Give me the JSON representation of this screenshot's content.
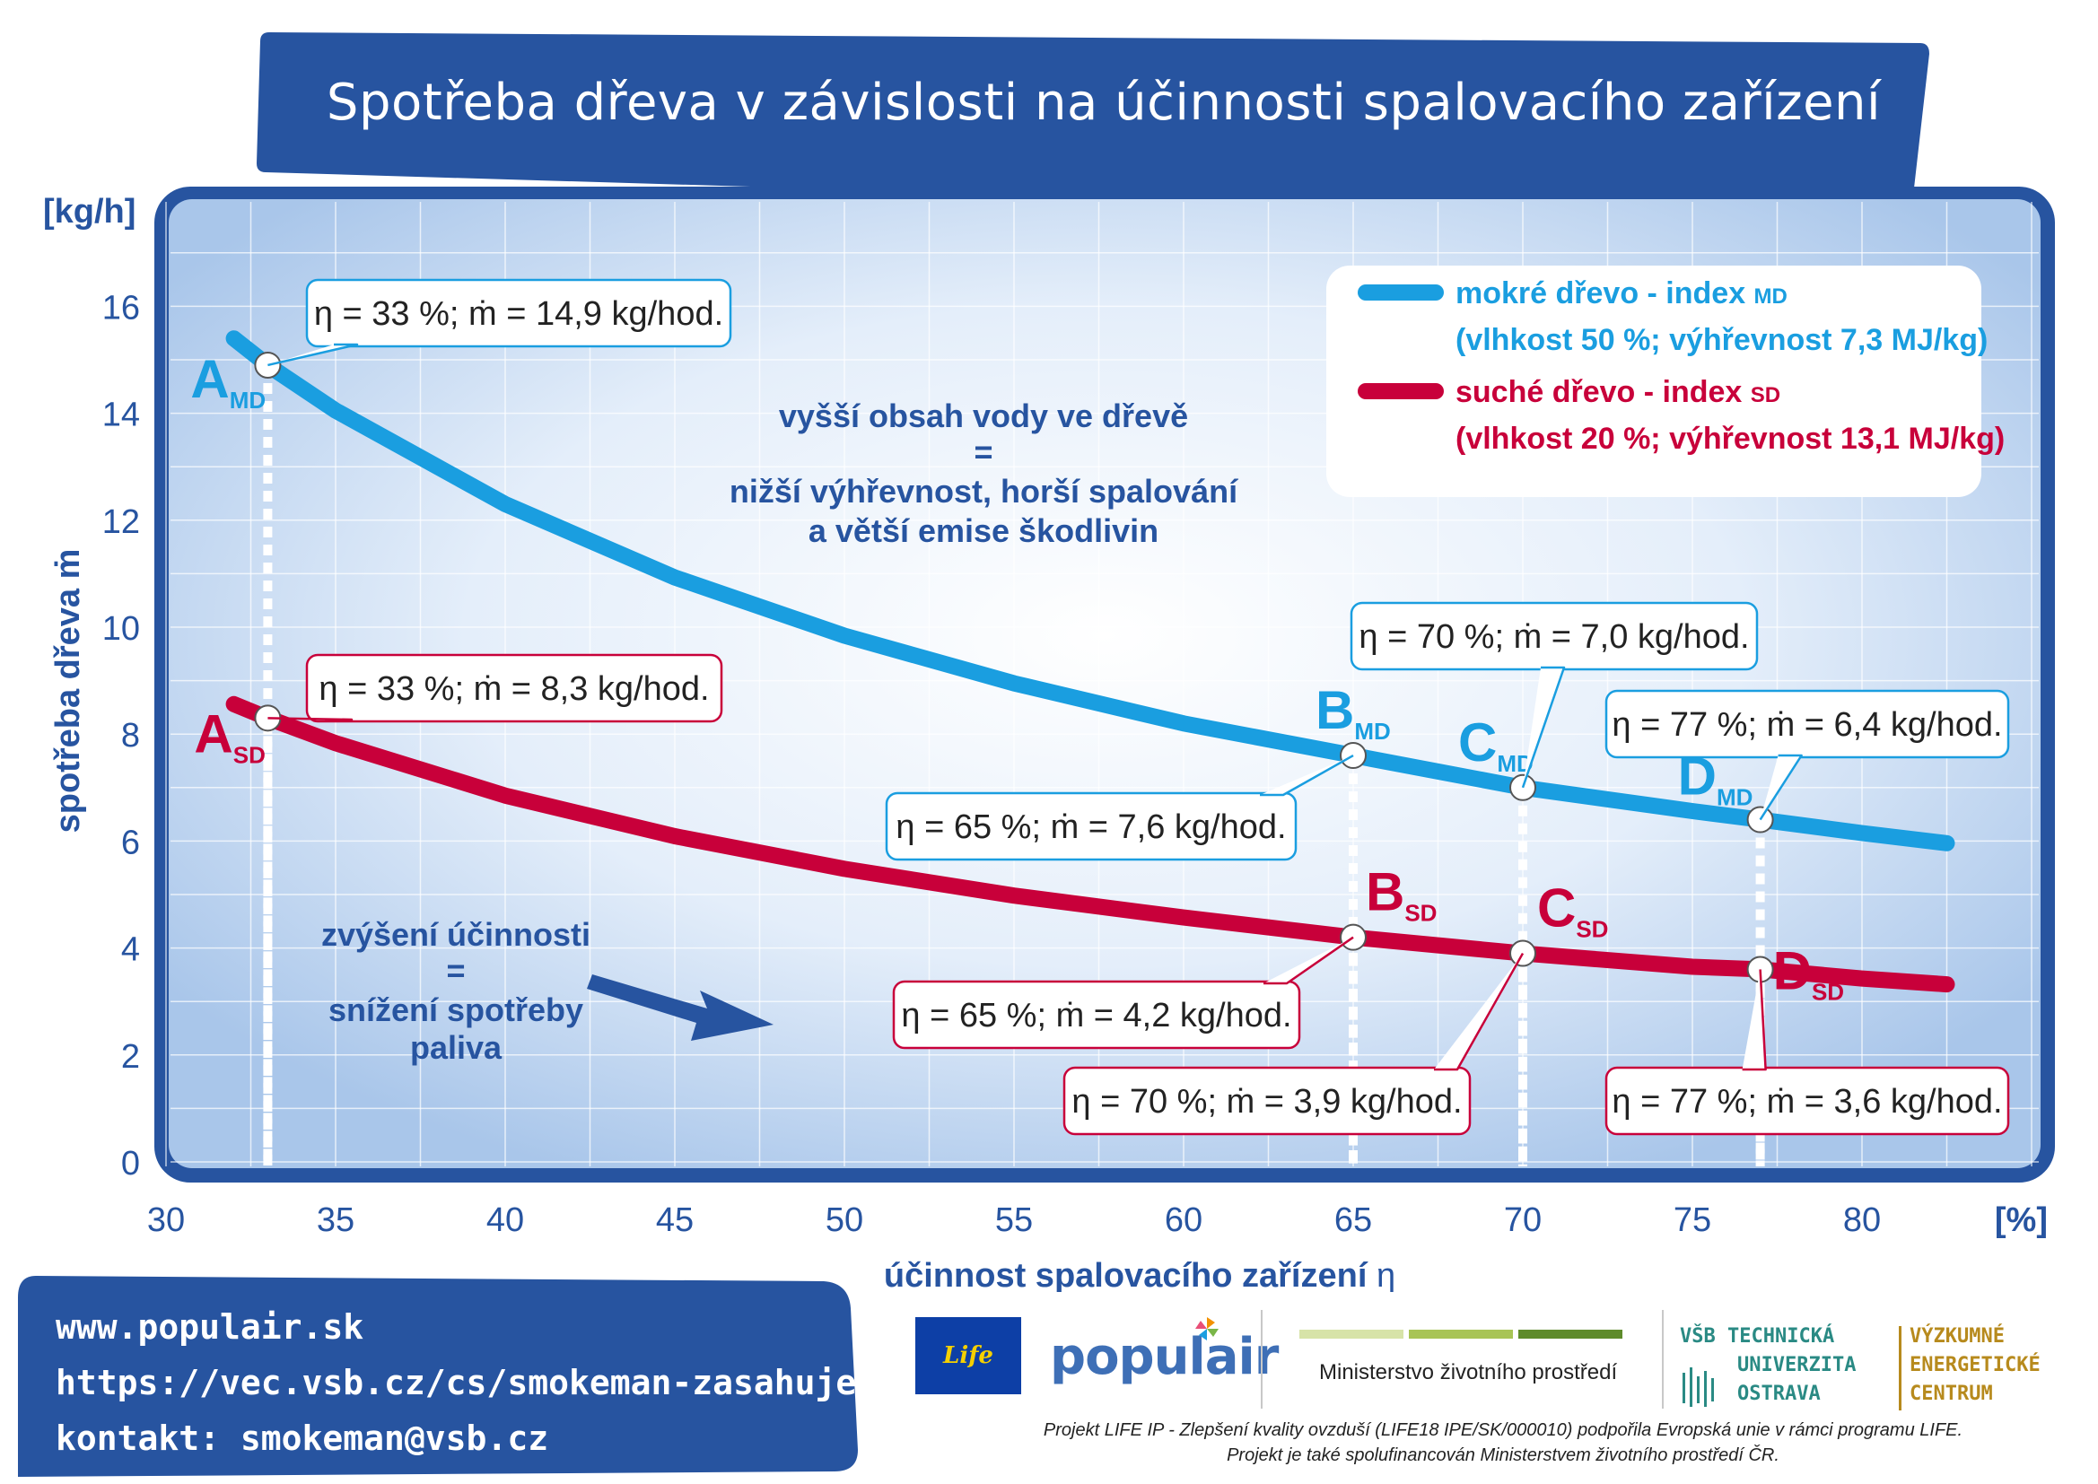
{
  "title": "Spotřeba dřeva v závislosti na účinnosti spalovacího zařízení",
  "colors": {
    "banner": "#2754a0",
    "frame": "#2754a0",
    "plot_inner": "#c7dcf2",
    "plot_glow": "#ffffff",
    "mokre": "#1a9ee0",
    "sucha": "#c8003a",
    "annotation": "#2754a0",
    "axis_text": "#2754a0"
  },
  "chart_data": {
    "type": "line",
    "xlabel": "účinnost spalovacího zařízení",
    "xlabel_symbol": "η",
    "ylabel": "spotřeba dřeva ṁ",
    "x_unit": "[%]",
    "y_unit": "[kg/h]",
    "xlim": [
      30,
      85
    ],
    "ylim": [
      0,
      17
    ],
    "xticks": [
      30,
      35,
      40,
      45,
      50,
      55,
      60,
      65,
      70,
      75,
      80
    ],
    "yticks": [
      0,
      2,
      4,
      6,
      8,
      10,
      12,
      14,
      16
    ],
    "grid": true,
    "legend_position": "top-right",
    "series": [
      {
        "name": "mokré dřevo - index",
        "index": "MD",
        "detail": "(vlhkost 50 %; výhřevnost 7,3 MJ/kg)",
        "color": "#1a9ee0",
        "x": [
          32,
          33,
          35,
          40,
          45,
          50,
          55,
          60,
          65,
          70,
          75,
          77,
          80,
          82.5
        ],
        "y": [
          15.4,
          14.9,
          14.05,
          12.3,
          10.93,
          9.84,
          8.95,
          8.2,
          7.6,
          7.0,
          6.56,
          6.4,
          6.15,
          5.96
        ]
      },
      {
        "name": "suché dřevo - index",
        "index": "SD",
        "detail": "(vlhkost 20 %; výhřevnost 13,1 MJ/kg)",
        "color": "#c8003a",
        "x": [
          32,
          33,
          35,
          40,
          45,
          50,
          55,
          60,
          65,
          70,
          75,
          77,
          80,
          82.5
        ],
        "y": [
          8.56,
          8.3,
          7.83,
          6.85,
          6.09,
          5.48,
          4.98,
          4.57,
          4.2,
          3.9,
          3.65,
          3.6,
          3.43,
          3.32
        ]
      }
    ],
    "points": [
      {
        "letter": "A",
        "index": "MD",
        "series": 0,
        "x": 33,
        "y": 14.9,
        "label": "η = 33 %; ṁ = 14,9 kg/hod."
      },
      {
        "letter": "B",
        "index": "MD",
        "series": 0,
        "x": 65,
        "y": 7.6,
        "label": "η = 65 %; ṁ = 7,6 kg/hod."
      },
      {
        "letter": "C",
        "index": "MD",
        "series": 0,
        "x": 70,
        "y": 7.0,
        "label": "η = 70 %; ṁ = 7,0 kg/hod."
      },
      {
        "letter": "D",
        "index": "MD",
        "series": 0,
        "x": 77,
        "y": 6.4,
        "label": "η = 77 %; ṁ = 6,4 kg/hod."
      },
      {
        "letter": "A",
        "index": "SD",
        "series": 1,
        "x": 33,
        "y": 8.3,
        "label": "η = 33 %; ṁ = 8,3 kg/hod."
      },
      {
        "letter": "B",
        "index": "SD",
        "series": 1,
        "x": 65,
        "y": 4.2,
        "label": "η = 65 %; ṁ = 4,2 kg/hod."
      },
      {
        "letter": "C",
        "index": "SD",
        "series": 1,
        "x": 70,
        "y": 3.9,
        "label": "η = 70 %; ṁ = 3,9 kg/hod."
      },
      {
        "letter": "D",
        "index": "SD",
        "series": 1,
        "x": 77,
        "y": 3.6,
        "label": "η = 77 %; ṁ = 3,6 kg/hod."
      }
    ],
    "annotations": [
      [
        "vyšší obsah vody ve dřevě",
        "=",
        "nižší výhřevnost, horší spalování",
        "a větší emise škodlivin"
      ],
      [
        "zvýšení účinnosti",
        "=",
        "snížení spotřeby",
        "paliva"
      ]
    ]
  },
  "footer": {
    "links": [
      "www.populair.sk",
      "https://vec.vsb.cz/cs/smokeman-zasahuje/",
      "kontakt: smokeman@vsb.cz"
    ],
    "life_logo": "Life",
    "populair": "populair",
    "ministry": "Ministerstvo životního prostředí",
    "vsb": [
      "VŠB TECHNICKÁ",
      "UNIVERZITA",
      "OSTRAVA"
    ],
    "vyzkumne": [
      "VÝZKUMNÉ",
      "ENERGETICKÉ",
      "CENTRUM"
    ],
    "note": [
      "Projekt LIFE IP - Zlepšení kvality ovzduší (LIFE18 IPE/SK/000010) podpořila Evropská unie v rámci programu LIFE.",
      "Projekt je také spolufinancován Ministerstvem životního prostředí ČR."
    ]
  }
}
